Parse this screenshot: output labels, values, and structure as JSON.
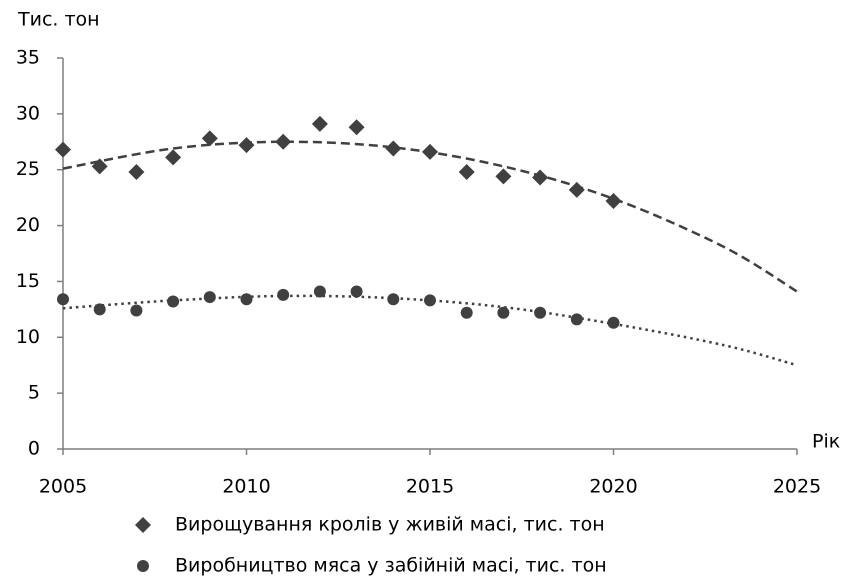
{
  "chart_data": {
    "type": "scatter",
    "y_label": "Тис. тон",
    "x_label": "Рік",
    "xlim": [
      2005,
      2025
    ],
    "xticks": [
      2005,
      2010,
      2015,
      2020,
      2025
    ],
    "ylim": [
      0,
      35
    ],
    "yticks": [
      0,
      5,
      10,
      15,
      20,
      25,
      30,
      35
    ],
    "grid": false,
    "legend": "bottom",
    "x": [
      2005,
      2006,
      2007,
      2008,
      2009,
      2010,
      2011,
      2012,
      2013,
      2014,
      2015,
      2016,
      2017,
      2018,
      2019,
      2020
    ],
    "series": [
      {
        "name": "Вирощування кролів у живій масі, тис. тон",
        "color": "#404040",
        "marker": "diamond",
        "values": [
          26.8,
          25.3,
          24.8,
          26.1,
          27.8,
          27.2,
          27.5,
          29.1,
          28.8,
          26.9,
          26.6,
          24.8,
          24.4,
          24.3,
          23.2,
          22.2
        ]
      },
      {
        "name": "Виробництво мяса у забійній масі, тис. тон",
        "color": "#404040",
        "marker": "circle",
        "values": [
          13.4,
          12.5,
          12.4,
          13.2,
          13.6,
          13.4,
          13.8,
          14.1,
          14.1,
          13.4,
          13.3,
          12.2,
          12.2,
          12.2,
          11.6,
          11.3
        ]
      }
    ],
    "trendlines": [
      {
        "style": "dashed",
        "x": [
          2005,
          2008,
          2011,
          2014,
          2017,
          2020,
          2023,
          2025
        ],
        "values": [
          25.1,
          26.9,
          27.5,
          27.0,
          25.3,
          22.4,
          18.1,
          14.1
        ]
      },
      {
        "style": "dotted",
        "x": [
          2005,
          2008,
          2011,
          2014,
          2017,
          2020,
          2023,
          2025
        ],
        "values": [
          12.6,
          13.3,
          13.7,
          13.5,
          12.7,
          11.2,
          9.3,
          7.5
        ]
      }
    ]
  }
}
